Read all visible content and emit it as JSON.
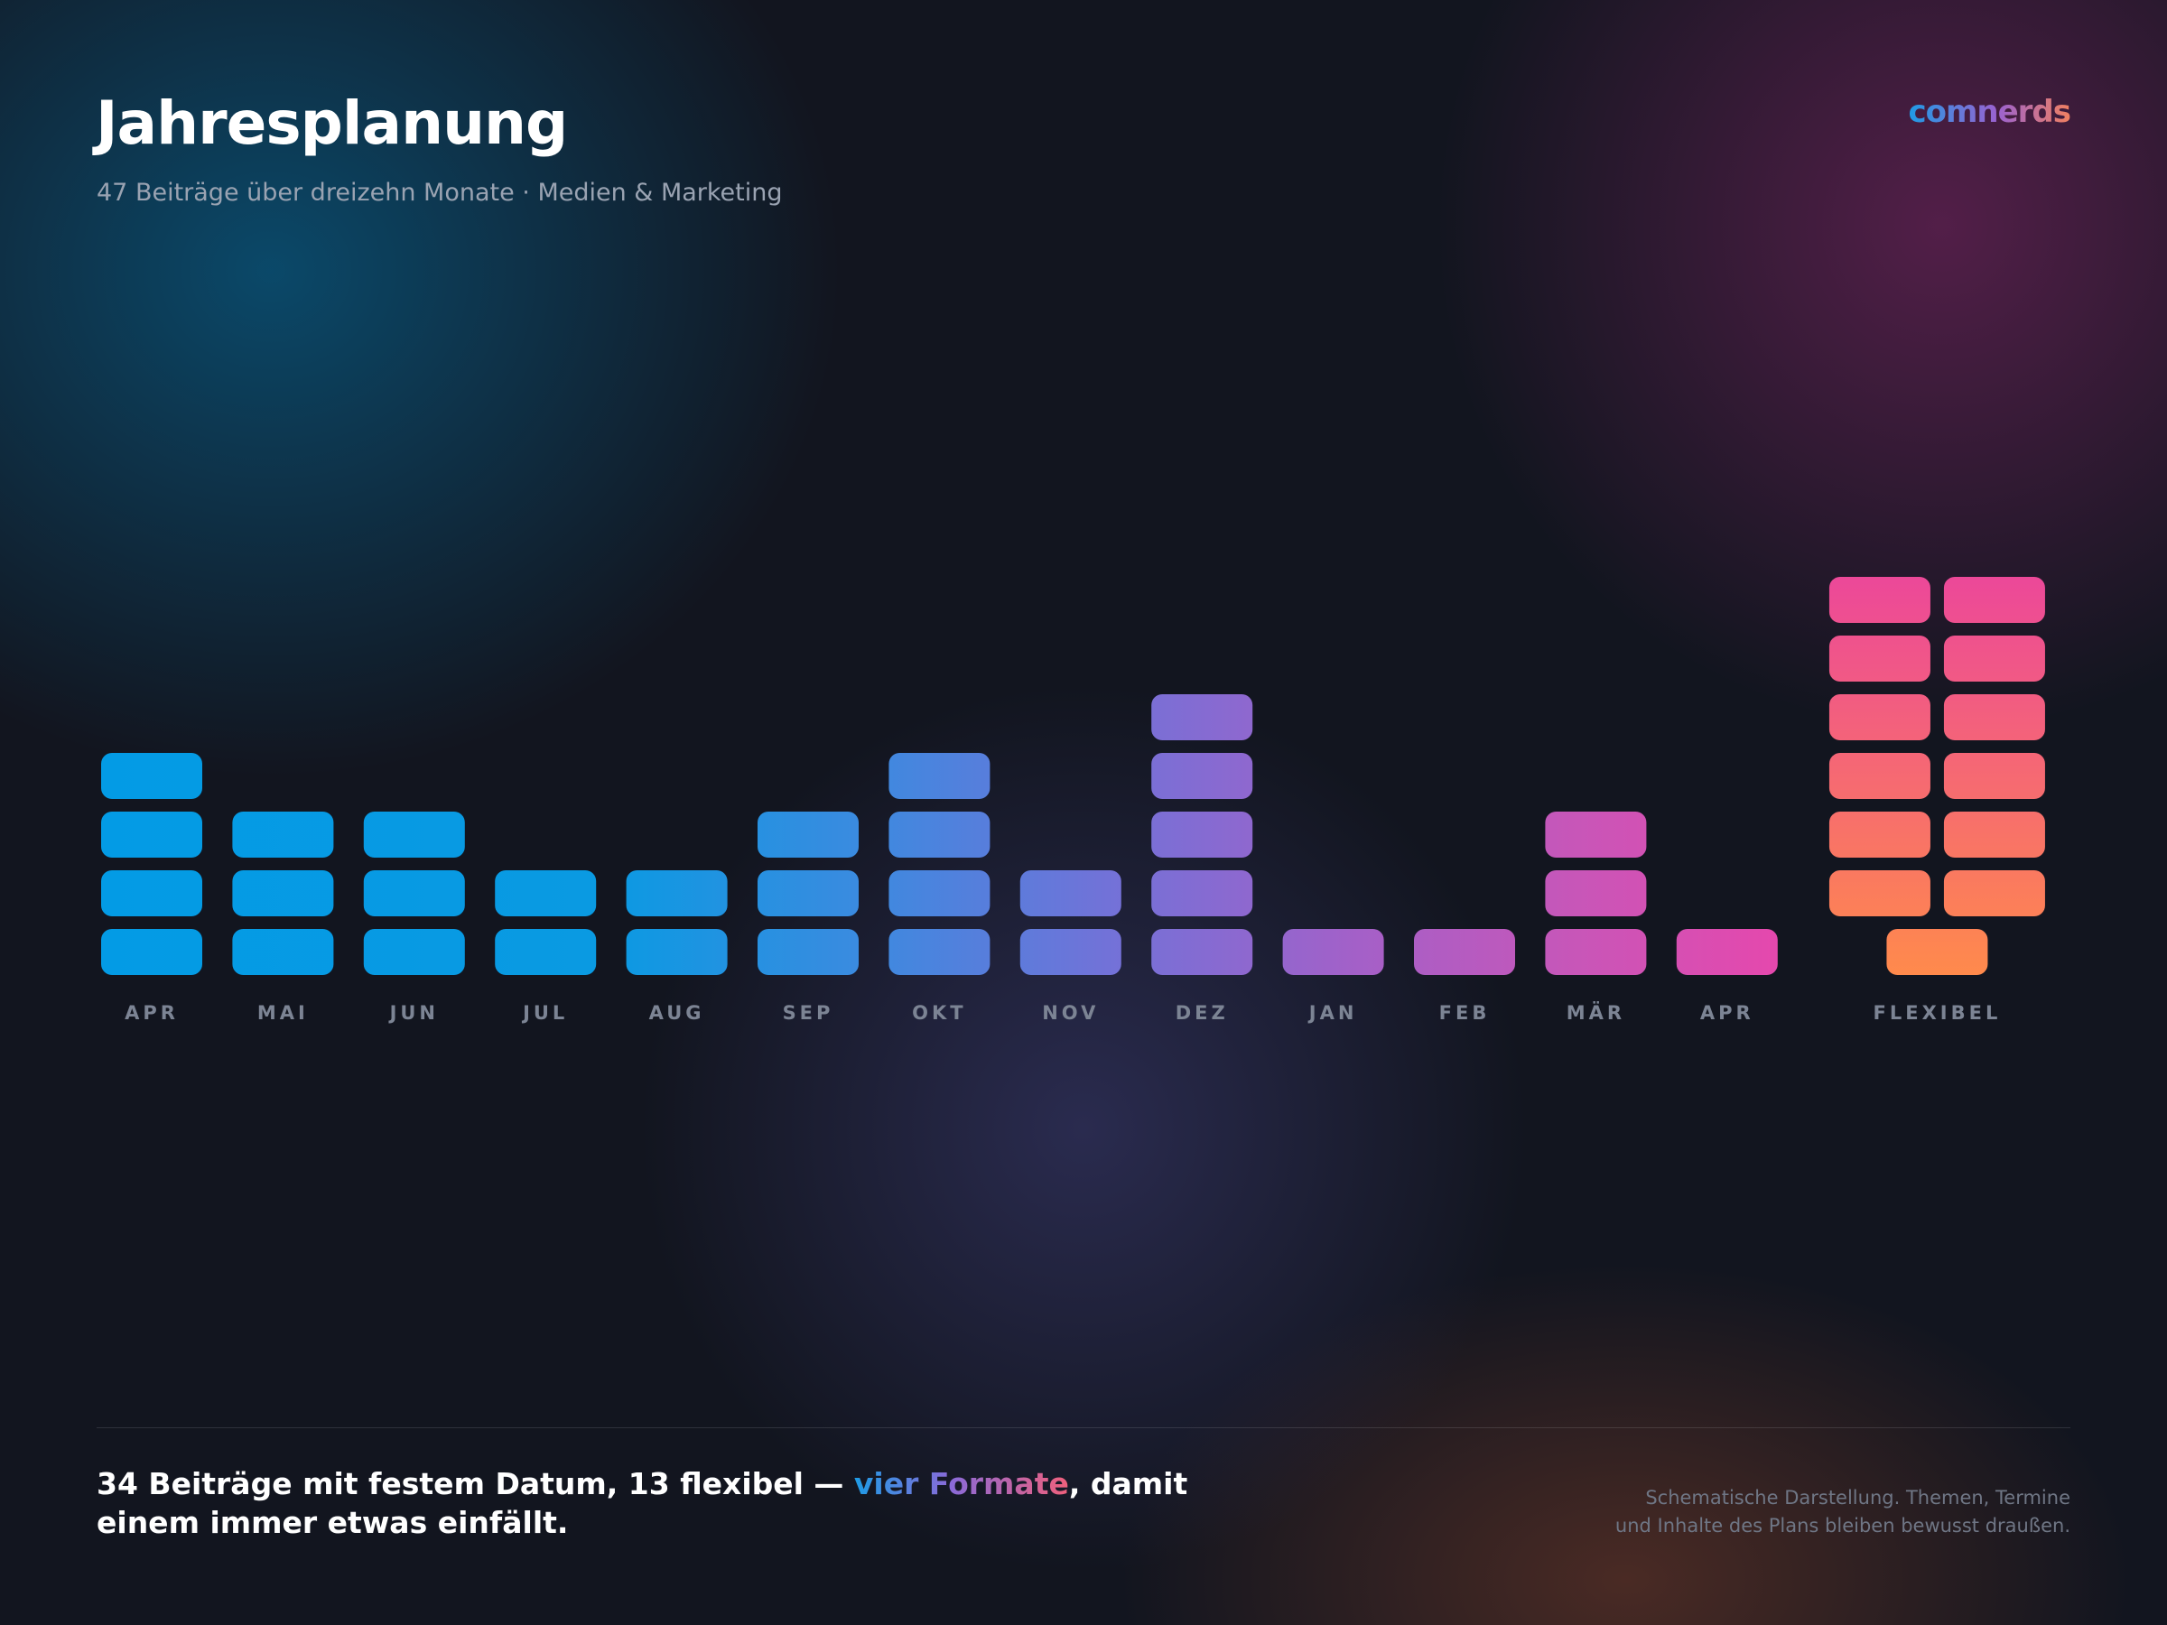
{
  "header": {
    "title": "Jahresplanung",
    "subtitle": "47 Beiträge über dreizehn Monate · Medien & Marketing",
    "logo": "comnerds"
  },
  "chart_data": {
    "type": "bar",
    "categories": [
      "APR",
      "MAI",
      "JUN",
      "JUL",
      "AUG",
      "SEP",
      "OKT",
      "NOV",
      "DEZ",
      "JAN",
      "FEB",
      "MÄR",
      "APR",
      "FLEXIBEL"
    ],
    "values": [
      4,
      3,
      3,
      2,
      2,
      3,
      4,
      2,
      5,
      1,
      1,
      3,
      1,
      13
    ]
  },
  "footer": {
    "headline": [
      "34 Beiträge mit festem Datum, 13 flexibel — ",
      "vier Formate",
      ", damit einem immer etwas einfällt."
    ],
    "note": [
      "Schematische Darstellung. Themen, Termine",
      "und Inhalte des Plans bleiben bewusst draußen."
    ]
  }
}
